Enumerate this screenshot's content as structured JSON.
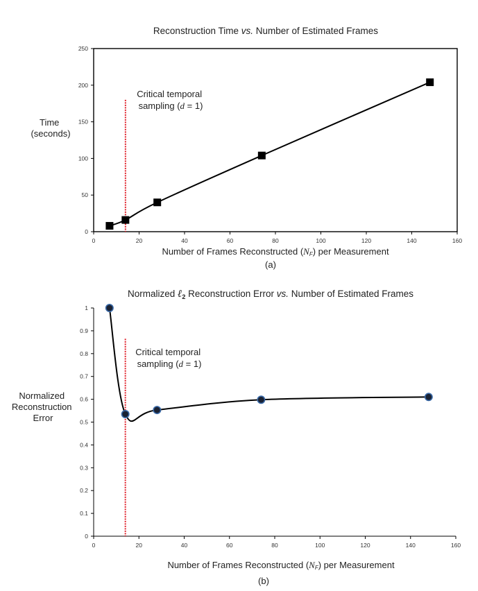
{
  "chart_data": [
    {
      "type": "line",
      "title_parts": [
        "Reconstruction Time ",
        "vs.",
        " Number of Estimated Frames"
      ],
      "xlabel_parts": [
        "Number of Frames Reconstructed (",
        "N",
        "F",
        ") per Measurement"
      ],
      "ylabel_lines": [
        "Time",
        "(seconds)"
      ],
      "caption": "(a)",
      "xlim": [
        0,
        160
      ],
      "ylim": [
        0,
        250
      ],
      "xticks": [
        0,
        20,
        40,
        60,
        80,
        100,
        120,
        140,
        160
      ],
      "yticks": [
        0,
        50,
        100,
        150,
        200,
        250
      ],
      "x": [
        7,
        14,
        28,
        74,
        148
      ],
      "y": [
        8,
        16,
        40,
        104,
        204
      ],
      "marker": "square",
      "line_color": "#000000",
      "marker_color": "#000000",
      "grid": false,
      "reference_line": {
        "x": 14,
        "y_top": 180,
        "color": "#e0202a",
        "style": "dotted"
      },
      "annotation_parts": [
        "Critical temporal",
        "sampling (",
        "d",
        " = 1)"
      ]
    },
    {
      "type": "line",
      "title_parts": [
        "Normalized ",
        "ℓ",
        "2",
        " Reconstruction Error ",
        "vs.",
        " Number of Estimated Frames"
      ],
      "xlabel_parts": [
        "Number of Frames Reconstructed (",
        "N",
        "F",
        ") per Measurement"
      ],
      "ylabel_lines": [
        "Normalized",
        "Reconstruction",
        "Error"
      ],
      "caption": "(b)",
      "xlim": [
        0,
        160
      ],
      "ylim": [
        0,
        1
      ],
      "xticks": [
        0,
        20,
        40,
        60,
        80,
        100,
        120,
        140,
        160
      ],
      "yticks": [
        0,
        0.1,
        0.2,
        0.3,
        0.4,
        0.5,
        0.6,
        0.7,
        0.8,
        0.9,
        1
      ],
      "x": [
        7,
        14,
        28,
        74,
        148
      ],
      "y": [
        1.0,
        0.535,
        0.553,
        0.598,
        0.61
      ],
      "marker": "circle",
      "line_color": "#000000",
      "marker_color": "#1a2233",
      "marker_edge": "#3a6aa8",
      "grid": false,
      "reference_line": {
        "x": 14,
        "y_top": 0.865,
        "color": "#e0202a",
        "style": "dotted"
      },
      "annotation_parts": [
        "Critical temporal",
        "sampling (",
        "d",
        " = 1)"
      ]
    }
  ]
}
